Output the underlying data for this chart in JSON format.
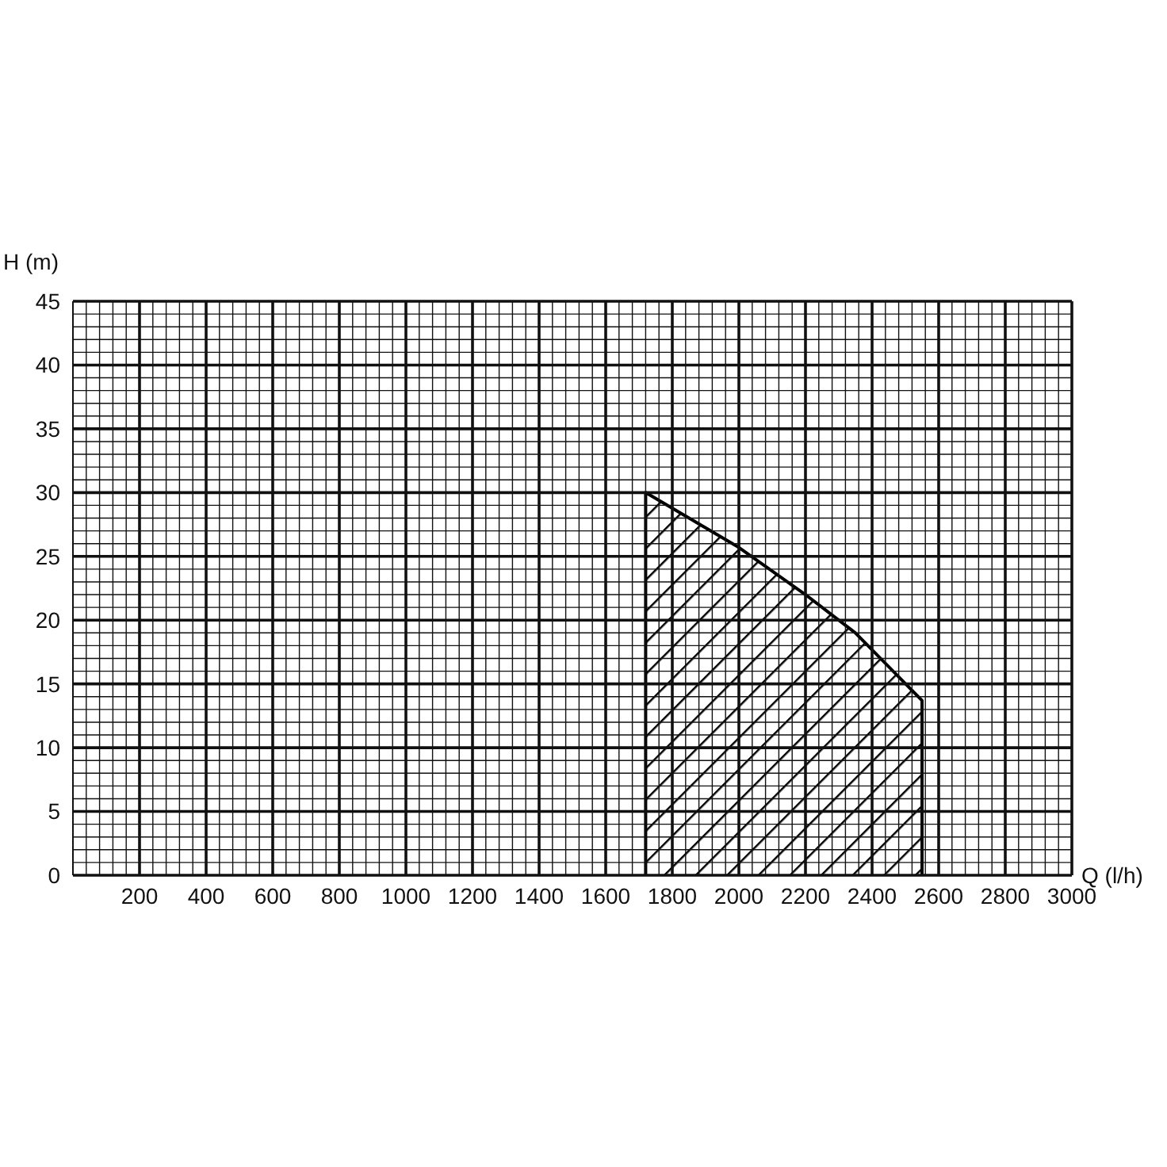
{
  "chart_data": {
    "type": "area",
    "xlabel": "Q (l/h)",
    "ylabel": "H (m)",
    "x": [
      1720,
      1720,
      2000,
      2200,
      2350,
      2550,
      2550
    ],
    "series": [
      {
        "color": "#000000",
        "values": [
          0,
          30,
          25.7,
          22,
          19,
          13.7,
          0
        ]
      }
    ],
    "xlim": [
      0,
      3000
    ],
    "ylim": [
      0,
      45
    ],
    "xticks": [
      {
        "value": 0,
        "label": null
      },
      {
        "value": 40,
        "label": null
      },
      {
        "value": 80,
        "label": null
      },
      {
        "value": 120,
        "label": null
      },
      {
        "value": 160,
        "label": null
      },
      200,
      {
        "value": 240,
        "label": null
      },
      {
        "value": 280,
        "label": null
      },
      {
        "value": 320,
        "label": null
      },
      {
        "value": 360,
        "label": null
      },
      400,
      {
        "value": 440,
        "label": null
      },
      {
        "value": 480,
        "label": null
      },
      {
        "value": 520,
        "label": null
      },
      {
        "value": 560,
        "label": null
      },
      600,
      {
        "value": 640,
        "label": null
      },
      {
        "value": 680,
        "label": null
      },
      {
        "value": 720,
        "label": null
      },
      {
        "value": 760,
        "label": null
      },
      800,
      {
        "value": 840,
        "label": null
      },
      {
        "value": 880,
        "label": null
      },
      {
        "value": 920,
        "label": null
      },
      {
        "value": 960,
        "label": null
      },
      1000,
      {
        "value": 1040,
        "label": null
      },
      {
        "value": 1080,
        "label": null
      },
      {
        "value": 1120,
        "label": null
      },
      {
        "value": 1160,
        "label": null
      },
      1200,
      {
        "value": 1240,
        "label": null
      },
      {
        "value": 1280,
        "label": null
      },
      {
        "value": 1320,
        "label": null
      },
      {
        "value": 1360,
        "label": null
      },
      1400,
      {
        "value": 1440,
        "label": null
      },
      {
        "value": 1480,
        "label": null
      },
      {
        "value": 1520,
        "label": null
      },
      {
        "value": 1560,
        "label": null
      },
      1600,
      {
        "value": 1640,
        "label": null
      },
      {
        "value": 1680,
        "label": null
      },
      {
        "value": 1720,
        "label": null
      },
      {
        "value": 1760,
        "label": null
      },
      1800,
      {
        "value": 1840,
        "label": null
      },
      {
        "value": 1880,
        "label": null
      },
      {
        "value": 1920,
        "label": null
      },
      {
        "value": 1960,
        "label": null
      },
      2000,
      {
        "value": 2040,
        "label": null
      },
      {
        "value": 2080,
        "label": null
      },
      {
        "value": 2120,
        "label": null
      },
      {
        "value": 2160,
        "label": null
      },
      2200,
      {
        "value": 2240,
        "label": null
      },
      {
        "value": 2280,
        "label": null
      },
      {
        "value": 2320,
        "label": null
      },
      {
        "value": 2360,
        "label": null
      },
      2400,
      {
        "value": 2440,
        "label": null
      },
      {
        "value": 2480,
        "label": null
      },
      {
        "value": 2520,
        "label": null
      },
      {
        "value": 2560,
        "label": null
      },
      2600,
      {
        "value": 2640,
        "label": null
      },
      {
        "value": 2680,
        "label": null
      },
      {
        "value": 2720,
        "label": null
      },
      {
        "value": 2760,
        "label": null
      },
      2800,
      {
        "value": 2840,
        "label": null
      },
      {
        "value": 2880,
        "label": null
      },
      {
        "value": 2920,
        "label": null
      },
      {
        "value": 2960,
        "label": null
      },
      3000
    ],
    "yticks": [
      0,
      {
        "value": 1,
        "label": null
      },
      {
        "value": 2,
        "label": null
      },
      {
        "value": 3,
        "label": null
      },
      {
        "value": 4,
        "label": null
      },
      5,
      {
        "value": 6,
        "label": null
      },
      {
        "value": 7,
        "label": null
      },
      {
        "value": 8,
        "label": null
      },
      {
        "value": 9,
        "label": null
      },
      10,
      {
        "value": 11,
        "label": null
      },
      {
        "value": 12,
        "label": null
      },
      {
        "value": 13,
        "label": null
      },
      {
        "value": 14,
        "label": null
      },
      15,
      {
        "value": 16,
        "label": null
      },
      {
        "value": 17,
        "label": null
      },
      {
        "value": 18,
        "label": null
      },
      {
        "value": 19,
        "label": null
      },
      20,
      {
        "value": 21,
        "label": null
      },
      {
        "value": 22,
        "label": null
      },
      {
        "value": 23,
        "label": null
      },
      {
        "value": 24,
        "label": null
      },
      25,
      {
        "value": 26,
        "label": null
      },
      {
        "value": 27,
        "label": null
      },
      {
        "value": 28,
        "label": null
      },
      {
        "value": 29,
        "label": null
      },
      30,
      {
        "value": 31,
        "label": null
      },
      {
        "value": 32,
        "label": null
      },
      {
        "value": 33,
        "label": null
      },
      {
        "value": 34,
        "label": null
      },
      35,
      {
        "value": 36,
        "label": null
      },
      {
        "value": 37,
        "label": null
      },
      {
        "value": 38,
        "label": null
      },
      {
        "value": 39,
        "label": null
      },
      40,
      {
        "value": 41,
        "label": null
      },
      {
        "value": 42,
        "label": null
      },
      {
        "value": 43,
        "label": null
      },
      {
        "value": 44,
        "label": null
      },
      45
    ],
    "grid": true
  }
}
